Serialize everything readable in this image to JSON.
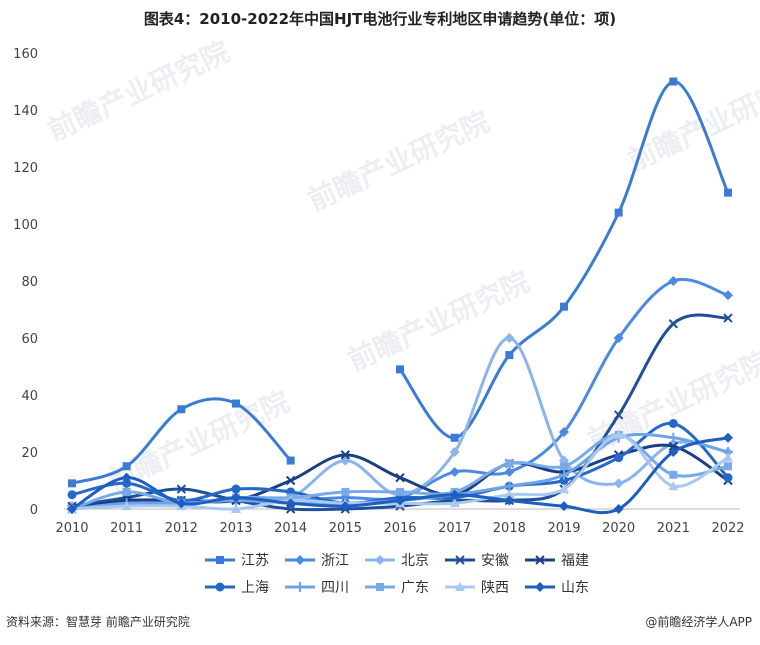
{
  "title": "图表4：2010-2022年中国HJT电池行业专利地区申请趋势(单位：项)",
  "source": "资料来源：智慧芽 前瞻产业研究院",
  "brand": "@前瞻经济学人APP",
  "watermark": "前瞻产业研究院",
  "chart_data": {
    "type": "line",
    "x": [
      "2010",
      "2011",
      "2012",
      "2013",
      "2014",
      "2015",
      "2016",
      "2017",
      "2018",
      "2019",
      "2020",
      "2021",
      "2022"
    ],
    "ylim": [
      0,
      160
    ],
    "yticks": [
      0,
      20,
      40,
      60,
      80,
      100,
      120,
      140,
      160
    ],
    "grid": false,
    "legend_position": "bottom",
    "series": [
      {
        "name": "江苏",
        "marker": "square",
        "color": "#3a7bd5",
        "values": [
          9,
          15,
          35,
          37,
          17,
          null,
          49,
          25,
          54,
          71,
          104,
          150,
          111
        ]
      },
      {
        "name": "浙江",
        "marker": "diamond",
        "color": "#4a8ae0",
        "values": [
          1,
          2,
          2,
          3,
          3,
          4,
          4,
          13,
          13,
          27,
          60,
          80,
          75
        ]
      },
      {
        "name": "北京",
        "marker": "diamond",
        "color": "#8ab4ec",
        "values": [
          1,
          3,
          3,
          3,
          4,
          17,
          5,
          20,
          60,
          17,
          9,
          23,
          20
        ]
      },
      {
        "name": "安徽",
        "marker": "x",
        "color": "#1f4e9a",
        "values": [
          1,
          4,
          7,
          3,
          0,
          0,
          1,
          3,
          3,
          7,
          33,
          65,
          67
        ]
      },
      {
        "name": "福建",
        "marker": "x",
        "color": "#1a3f85",
        "values": [
          0,
          3,
          3,
          3,
          10,
          19,
          11,
          5,
          16,
          13,
          19,
          22,
          10
        ]
      },
      {
        "name": "上海",
        "marker": "circle",
        "color": "#2468c8",
        "values": [
          5,
          9,
          3,
          7,
          6,
          2,
          4,
          4,
          8,
          10,
          18,
          30,
          11
        ]
      },
      {
        "name": "四川",
        "marker": "plus",
        "color": "#6ea3e8",
        "values": [
          0,
          2,
          2,
          3,
          2,
          2,
          3,
          5,
          8,
          12,
          25,
          25,
          20
        ]
      },
      {
        "name": "广东",
        "marker": "square",
        "color": "#78aaea",
        "values": [
          0,
          6,
          2,
          4,
          4,
          6,
          6,
          6,
          16,
          15,
          26,
          12,
          15
        ]
      },
      {
        "name": "陕西",
        "marker": "triangle",
        "color": "#a9c9f0",
        "values": [
          0,
          1,
          1,
          0,
          3,
          2,
          2,
          2,
          5,
          7,
          26,
          8,
          18
        ]
      },
      {
        "name": "山东",
        "marker": "diamond",
        "color": "#1c5fc0",
        "values": [
          0,
          11,
          2,
          4,
          2,
          1,
          3,
          5,
          3,
          1,
          0,
          20,
          25
        ]
      }
    ]
  }
}
